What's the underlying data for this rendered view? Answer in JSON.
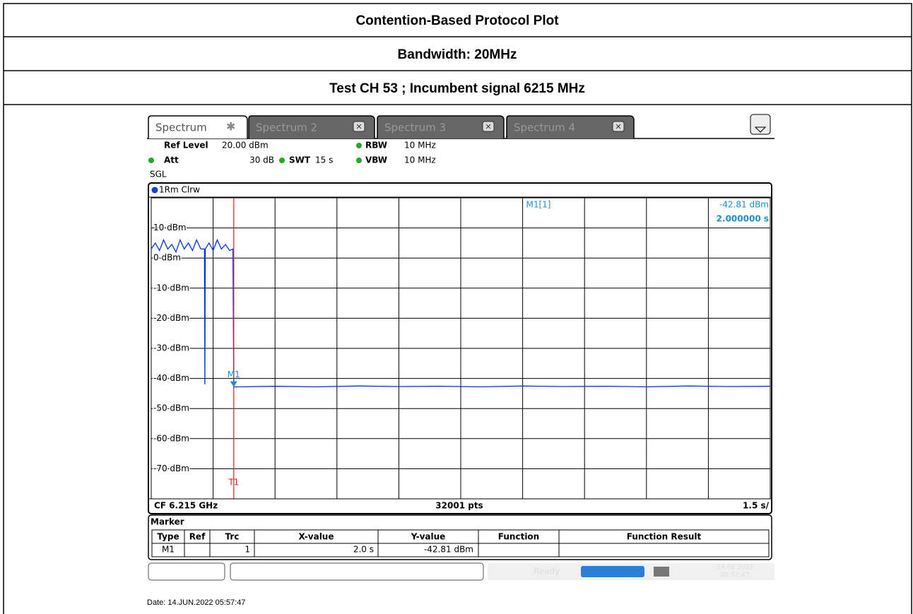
{
  "header": {
    "title": "Contention-Based Protocol Plot",
    "bandwidth": "Bandwidth: 20MHz",
    "test": "Test CH 53 ; Incumbent signal 6215 MHz"
  },
  "instrument": {
    "tabs": [
      "Spectrum",
      "Spectrum 2",
      "Spectrum 3",
      "Spectrum 4"
    ],
    "settings": {
      "ref_level_label": "Ref Level",
      "ref_level": "20.00 dBm",
      "att_label": "Att",
      "att": "30 dB",
      "swt_label": "SWT",
      "swt": "15 s",
      "rbw_label": "RBW",
      "rbw": "10 MHz",
      "vbw_label": "VBW",
      "vbw": "10 MHz",
      "mode": "SGL"
    },
    "trace_label": "1Rm Clrw",
    "marker_readout": {
      "name": "M1[1]",
      "y": "-42.81 dBm",
      "x": "2.000000 s"
    },
    "footer": {
      "center_freq": "CF 6.215 GHz",
      "points": "32001 pts",
      "scale": "1.5 s/"
    },
    "marker_table": {
      "title": "Marker",
      "columns": [
        "Type",
        "Ref",
        "Trc",
        "X-value",
        "Y-value",
        "Function",
        "Function Result"
      ],
      "row": {
        "type": "M1",
        "trc": "1",
        "x_value": "2.0 s",
        "y_value": "-42.81 dBm"
      }
    },
    "status": {
      "state": "Ready",
      "date": "14.06.2022",
      "time": "05:57:47"
    }
  },
  "date_line": "Date: 14.JUN.2022  05:57:47",
  "chart_data": {
    "type": "line",
    "xlim": [
      0,
      15
    ],
    "ylim": [
      -80,
      20
    ],
    "xticks": [
      0,
      1.5,
      3,
      4.5,
      6,
      7.5,
      9,
      10.5,
      12,
      13.5,
      15
    ],
    "yticks": [
      {
        "value": 10,
        "label": "10 dBm"
      },
      {
        "value": 0,
        "label": "0 dBm"
      },
      {
        "value": -10,
        "label": "-10 dBm"
      },
      {
        "value": -20,
        "label": "-20 dBm"
      },
      {
        "value": -30,
        "label": "-30 dBm"
      },
      {
        "value": -40,
        "label": "-40 dBm"
      },
      {
        "value": -50,
        "label": "-50 dBm"
      },
      {
        "value": -60,
        "label": "-60 dBm"
      },
      {
        "value": -70,
        "label": "-70 dBm"
      }
    ],
    "grid": true,
    "series": [
      {
        "name": "1Rm Clrw",
        "color": "#0033ee",
        "x": [
          0,
          0.1,
          0.2,
          0.3,
          0.4,
          0.5,
          0.6,
          0.7,
          0.8,
          0.9,
          1.0,
          1.1,
          1.2,
          1.29,
          1.3,
          1.31,
          1.4,
          1.5,
          1.6,
          1.7,
          1.8,
          1.9,
          1.98,
          2.0,
          3,
          4,
          5,
          6,
          7,
          8,
          9,
          10,
          11,
          12,
          13,
          14,
          15
        ],
        "values": [
          3,
          5,
          2.5,
          6,
          3,
          4.5,
          2,
          6,
          3,
          5,
          2.5,
          6,
          3,
          3,
          -42,
          3,
          5,
          2.5,
          6,
          3,
          4.5,
          2.5,
          3,
          -42.81,
          -42.6,
          -42.8,
          -42.5,
          -42.7,
          -42.6,
          -42.8,
          -42.5,
          -42.7,
          -42.6,
          -42.8,
          -42.5,
          -42.7,
          -42.6
        ]
      }
    ],
    "markers": [
      {
        "name": "M1",
        "x": 2.0,
        "y": -42.81
      }
    ],
    "lines": [
      {
        "name": "T1",
        "x": 2.0,
        "color": "#e02020"
      }
    ]
  }
}
